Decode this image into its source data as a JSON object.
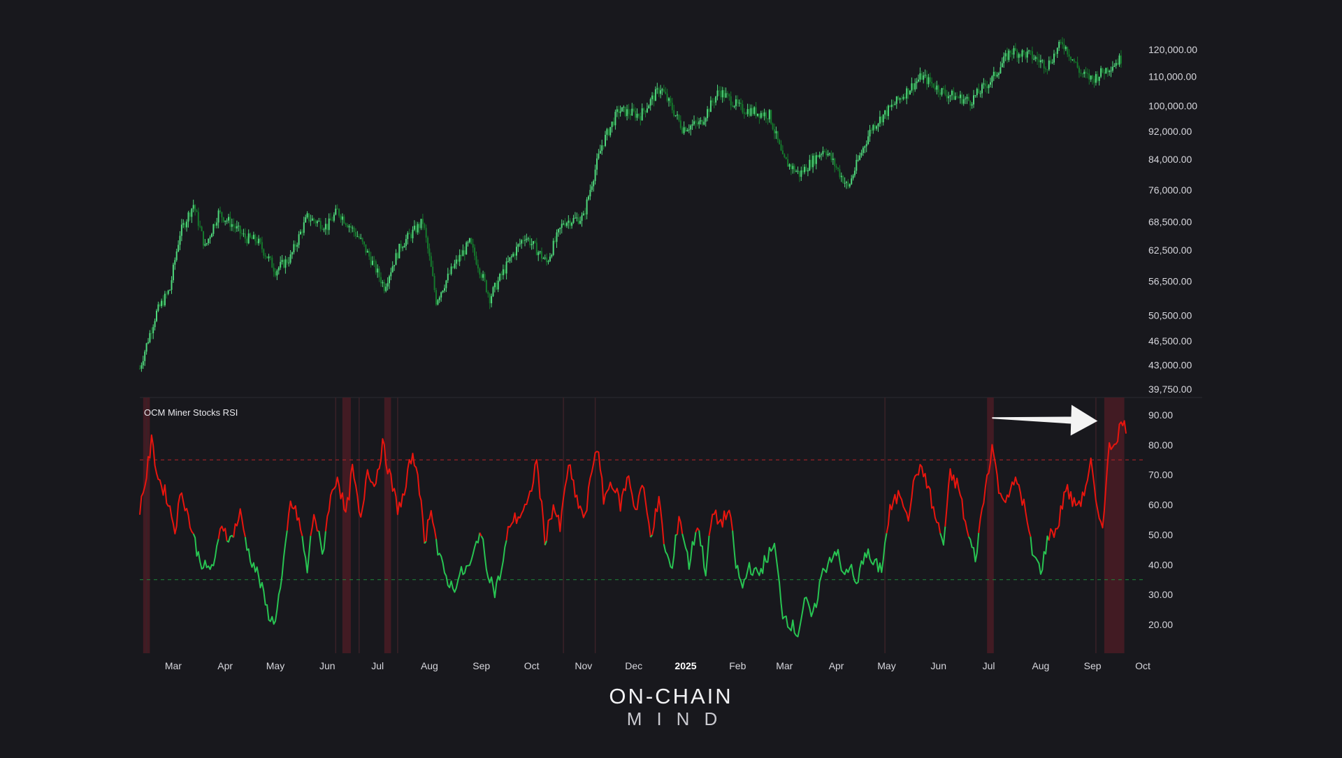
{
  "logo": {
    "line1": "ON-CHAIN",
    "line2": "MIND"
  },
  "colors": {
    "background": "#18181d",
    "candle_up": "#4fd97c",
    "candle_down": "#147a2c",
    "rsi_high": "#e8150e",
    "rsi_low": "#28c452",
    "overbought_line": "#b8242a",
    "oversold_line": "#1f8a3c",
    "highlight_band": "#4a1c24",
    "arrow": "#ffffff"
  },
  "chart_data": [
    {
      "type": "candlestick",
      "title": "",
      "scale": "log",
      "y_ticks": [
        120000,
        110000,
        100000,
        92000,
        84000,
        76000,
        68500,
        62500,
        56500,
        50500,
        46500,
        43000,
        39750
      ],
      "y_tick_labels": [
        "120,000.00",
        "110,000.00",
        "100,000.00",
        "92,000.00",
        "84,000.00",
        "76,000.00",
        "68,500.00",
        "62,500.00",
        "56,500.00",
        "50,500.00",
        "46,500.00",
        "43,000.00",
        "39,750.00"
      ],
      "x_ticks": [
        {
          "date": "2024-03-01",
          "label": "Mar"
        },
        {
          "date": "2024-04-01",
          "label": "Apr"
        },
        {
          "date": "2024-05-01",
          "label": "May"
        },
        {
          "date": "2024-06-01",
          "label": "Jun"
        },
        {
          "date": "2024-07-01",
          "label": "Jul"
        },
        {
          "date": "2024-08-01",
          "label": "Aug"
        },
        {
          "date": "2024-09-01",
          "label": "Sep"
        },
        {
          "date": "2024-10-01",
          "label": "Oct"
        },
        {
          "date": "2024-11-01",
          "label": "Nov"
        },
        {
          "date": "2024-12-01",
          "label": "Dec"
        },
        {
          "date": "2025-01-01",
          "label": "2025",
          "bold": true
        },
        {
          "date": "2025-02-01",
          "label": "Feb"
        },
        {
          "date": "2025-03-01",
          "label": "Mar"
        },
        {
          "date": "2025-04-01",
          "label": "Apr"
        },
        {
          "date": "2025-05-01",
          "label": "May"
        },
        {
          "date": "2025-06-01",
          "label": "Jun"
        },
        {
          "date": "2025-07-01",
          "label": "Jul"
        },
        {
          "date": "2025-08-01",
          "label": "Aug"
        },
        {
          "date": "2025-09-01",
          "label": "Sep"
        },
        {
          "date": "2025-10-01",
          "label": "Oct"
        }
      ],
      "x_range": [
        "2024-02-10",
        "2025-10-01"
      ],
      "close_keypoints": [
        [
          "2024-02-10",
          42500
        ],
        [
          "2024-02-20",
          51000
        ],
        [
          "2024-02-28",
          55000
        ],
        [
          "2024-03-05",
          66000
        ],
        [
          "2024-03-13",
          72500
        ],
        [
          "2024-03-20",
          63000
        ],
        [
          "2024-03-28",
          70500
        ],
        [
          "2024-04-05",
          68000
        ],
        [
          "2024-04-13",
          65000
        ],
        [
          "2024-04-20",
          64500
        ],
        [
          "2024-05-01",
          58500
        ],
        [
          "2024-05-10",
          61000
        ],
        [
          "2024-05-20",
          69500
        ],
        [
          "2024-06-01",
          67500
        ],
        [
          "2024-06-07",
          71000
        ],
        [
          "2024-06-20",
          65000
        ],
        [
          "2024-07-05",
          55500
        ],
        [
          "2024-07-15",
          63500
        ],
        [
          "2024-07-28",
          68500
        ],
        [
          "2024-08-05",
          53000
        ],
        [
          "2024-08-15",
          59000
        ],
        [
          "2024-08-25",
          64000
        ],
        [
          "2024-09-06",
          53500
        ],
        [
          "2024-09-18",
          60500
        ],
        [
          "2024-09-27",
          65500
        ],
        [
          "2024-10-10",
          60000
        ],
        [
          "2024-10-20",
          68500
        ],
        [
          "2024-11-01",
          69500
        ],
        [
          "2024-11-12",
          88000
        ],
        [
          "2024-11-22",
          98500
        ],
        [
          "2024-12-05",
          97000
        ],
        [
          "2024-12-17",
          106000
        ],
        [
          "2024-12-30",
          93000
        ],
        [
          "2025-01-10",
          94500
        ],
        [
          "2025-01-21",
          105000
        ],
        [
          "2025-02-03",
          99000
        ],
        [
          "2025-02-20",
          97000
        ],
        [
          "2025-02-28",
          84000
        ],
        [
          "2025-03-10",
          80000
        ],
        [
          "2025-03-25",
          87000
        ],
        [
          "2025-04-08",
          76500
        ],
        [
          "2025-04-22",
          93000
        ],
        [
          "2025-05-10",
          103000
        ],
        [
          "2025-05-22",
          110000
        ],
        [
          "2025-06-05",
          104000
        ],
        [
          "2025-06-20",
          101500
        ],
        [
          "2025-07-03",
          109000
        ],
        [
          "2025-07-14",
          119500
        ],
        [
          "2025-07-25",
          118000
        ],
        [
          "2025-08-05",
          114000
        ],
        [
          "2025-08-14",
          123000
        ],
        [
          "2025-08-25",
          111000
        ],
        [
          "2025-09-01",
          109000
        ],
        [
          "2025-09-10",
          113000
        ],
        [
          "2025-09-18",
          116500
        ]
      ]
    },
    {
      "type": "line",
      "title": "OCM Miner Stocks RSI",
      "y_ticks": [
        90,
        80,
        70,
        60,
        50,
        40,
        30,
        20
      ],
      "y_tick_labels": [
        "90.00",
        "80.00",
        "70.00",
        "60.00",
        "50.00",
        "40.00",
        "30.00",
        "20.00"
      ],
      "ylim": [
        10,
        95
      ],
      "overbought": 75,
      "oversold": 35,
      "x_range": [
        "2024-02-10",
        "2025-10-01"
      ],
      "highlight_bands": [
        [
          "2024-02-12",
          "2024-02-16"
        ],
        [
          "2024-06-10",
          "2024-06-15"
        ],
        [
          "2024-07-05",
          "2024-07-09"
        ],
        [
          "2025-06-30",
          "2025-07-04"
        ],
        [
          "2025-09-08",
          "2025-09-20"
        ]
      ],
      "event_lines": [
        "2024-02-14",
        "2024-06-06",
        "2024-06-20",
        "2024-07-13",
        "2024-10-20",
        "2024-11-08",
        "2025-04-30",
        "2025-09-03"
      ],
      "arrow": {
        "from": [
          "2025-07-03",
          89
        ],
        "to": [
          "2025-09-04",
          88
        ]
      },
      "keypoints": [
        [
          "2024-02-10",
          59
        ],
        [
          "2024-02-14",
          70
        ],
        [
          "2024-02-17",
          81
        ],
        [
          "2024-02-21",
          69
        ],
        [
          "2024-02-26",
          63
        ],
        [
          "2024-03-02",
          52
        ],
        [
          "2024-03-06",
          65
        ],
        [
          "2024-03-10",
          56
        ],
        [
          "2024-03-16",
          43
        ],
        [
          "2024-03-21",
          38
        ],
        [
          "2024-03-26",
          41
        ],
        [
          "2024-03-30",
          54
        ],
        [
          "2024-04-04",
          48
        ],
        [
          "2024-04-10",
          57
        ],
        [
          "2024-04-15",
          44
        ],
        [
          "2024-04-21",
          36
        ],
        [
          "2024-04-26",
          25
        ],
        [
          "2024-04-30",
          20
        ],
        [
          "2024-05-05",
          35
        ],
        [
          "2024-05-10",
          61
        ],
        [
          "2024-05-15",
          55
        ],
        [
          "2024-05-20",
          38
        ],
        [
          "2024-05-24",
          58
        ],
        [
          "2024-05-29",
          43
        ],
        [
          "2024-06-02",
          60
        ],
        [
          "2024-06-07",
          70
        ],
        [
          "2024-06-12",
          56
        ],
        [
          "2024-06-16",
          72
        ],
        [
          "2024-06-21",
          54
        ],
        [
          "2024-06-25",
          73
        ],
        [
          "2024-06-29",
          66
        ],
        [
          "2024-07-04",
          80
        ],
        [
          "2024-07-09",
          68
        ],
        [
          "2024-07-13",
          59
        ],
        [
          "2024-07-17",
          63
        ],
        [
          "2024-07-21",
          76
        ],
        [
          "2024-07-25",
          72
        ],
        [
          "2024-07-29",
          47
        ],
        [
          "2024-08-02",
          60
        ],
        [
          "2024-08-06",
          44
        ],
        [
          "2024-08-10",
          37
        ],
        [
          "2024-08-15",
          32
        ],
        [
          "2024-08-20",
          37
        ],
        [
          "2024-08-26",
          40
        ],
        [
          "2024-08-31",
          52
        ],
        [
          "2024-09-04",
          40
        ],
        [
          "2024-09-09",
          31
        ],
        [
          "2024-09-13",
          38
        ],
        [
          "2024-09-18",
          54
        ],
        [
          "2024-09-23",
          56
        ],
        [
          "2024-09-29",
          60
        ],
        [
          "2024-10-04",
          75
        ],
        [
          "2024-10-09",
          48
        ],
        [
          "2024-10-14",
          60
        ],
        [
          "2024-10-18",
          52
        ],
        [
          "2024-10-23",
          74
        ],
        [
          "2024-10-27",
          63
        ],
        [
          "2024-11-02",
          55
        ],
        [
          "2024-11-06",
          72
        ],
        [
          "2024-11-09",
          80
        ],
        [
          "2024-11-13",
          62
        ],
        [
          "2024-11-18",
          68
        ],
        [
          "2024-11-23",
          60
        ],
        [
          "2024-11-28",
          70
        ],
        [
          "2024-12-02",
          58
        ],
        [
          "2024-12-06",
          67
        ],
        [
          "2024-12-11",
          50
        ],
        [
          "2024-12-16",
          61
        ],
        [
          "2024-12-20",
          44
        ],
        [
          "2024-12-24",
          38
        ],
        [
          "2024-12-28",
          57
        ],
        [
          "2025-01-03",
          40
        ],
        [
          "2025-01-08",
          54
        ],
        [
          "2025-01-13",
          38
        ],
        [
          "2025-01-17",
          57
        ],
        [
          "2025-01-22",
          54
        ],
        [
          "2025-01-27",
          58
        ],
        [
          "2025-01-31",
          40
        ],
        [
          "2025-02-04",
          32
        ],
        [
          "2025-02-08",
          40
        ],
        [
          "2025-02-13",
          36
        ],
        [
          "2025-02-18",
          42
        ],
        [
          "2025-02-23",
          46
        ],
        [
          "2025-02-28",
          24
        ],
        [
          "2025-03-05",
          20
        ],
        [
          "2025-03-09",
          17
        ],
        [
          "2025-03-13",
          28
        ],
        [
          "2025-03-18",
          22
        ],
        [
          "2025-03-23",
          36
        ],
        [
          "2025-03-28",
          42
        ],
        [
          "2025-04-01",
          45
        ],
        [
          "2025-04-05",
          36
        ],
        [
          "2025-04-09",
          40
        ],
        [
          "2025-04-13",
          32
        ],
        [
          "2025-04-18",
          45
        ],
        [
          "2025-04-23",
          40
        ],
        [
          "2025-04-28",
          39
        ],
        [
          "2025-05-03",
          58
        ],
        [
          "2025-05-09",
          64
        ],
        [
          "2025-05-14",
          57
        ],
        [
          "2025-05-19",
          72
        ],
        [
          "2025-05-24",
          70
        ],
        [
          "2025-05-30",
          56
        ],
        [
          "2025-06-04",
          47
        ],
        [
          "2025-06-08",
          70
        ],
        [
          "2025-06-13",
          66
        ],
        [
          "2025-06-18",
          51
        ],
        [
          "2025-06-23",
          42
        ],
        [
          "2025-06-28",
          62
        ],
        [
          "2025-07-03",
          80
        ],
        [
          "2025-07-08",
          62
        ],
        [
          "2025-07-13",
          64
        ],
        [
          "2025-07-18",
          68
        ],
        [
          "2025-07-22",
          60
        ],
        [
          "2025-07-27",
          44
        ],
        [
          "2025-08-01",
          38
        ],
        [
          "2025-08-06",
          50
        ],
        [
          "2025-08-11",
          52
        ],
        [
          "2025-08-16",
          66
        ],
        [
          "2025-08-21",
          60
        ],
        [
          "2025-08-26",
          62
        ],
        [
          "2025-08-31",
          74
        ],
        [
          "2025-09-04",
          56
        ],
        [
          "2025-09-07",
          54
        ],
        [
          "2025-09-11",
          79
        ],
        [
          "2025-09-15",
          82
        ],
        [
          "2025-09-18",
          87
        ],
        [
          "2025-09-21",
          86
        ]
      ]
    }
  ]
}
